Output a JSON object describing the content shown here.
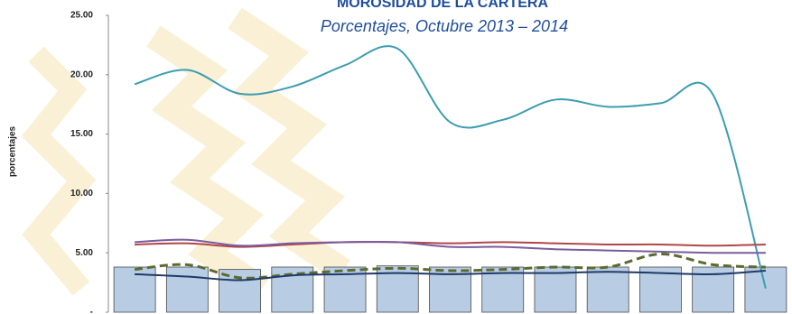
{
  "chart_data": {
    "type": "bar-line",
    "title": "MOROSIDAD DE LA CARTERA",
    "subtitle": "Porcentajes, Octubre 2013 – 2014",
    "y_label": "porcentajes",
    "categories": [
      null,
      null,
      null,
      null,
      null,
      null,
      null,
      null,
      null,
      null,
      null,
      null,
      null
    ],
    "ylim": [
      0,
      25
    ],
    "yticks": [
      {
        "value": 0,
        "label": "-"
      },
      {
        "value": 5,
        "label": "5.00"
      },
      {
        "value": 10,
        "label": "10.00"
      },
      {
        "value": 15,
        "label": "15.00"
      },
      {
        "value": 20,
        "label": "20.00"
      },
      {
        "value": 25,
        "label": "25.00"
      }
    ],
    "bar_color": "#b8cce4",
    "bar_values": [
      3.8,
      3.8,
      3.6,
      3.8,
      3.8,
      3.9,
      3.8,
      3.8,
      3.8,
      3.8,
      3.8,
      3.8,
      3.8
    ],
    "series": [
      {
        "color": "#3c9db0",
        "values": [
          19.2,
          20.4,
          18.4,
          19.0,
          20.8,
          22.2,
          16.0,
          16.2,
          17.9,
          17.3,
          17.6,
          18.3,
          2.0
        ]
      },
      {
        "color": "#b0464a",
        "values": [
          5.7,
          5.8,
          5.5,
          5.7,
          5.9,
          5.9,
          5.8,
          5.9,
          5.8,
          5.7,
          5.7,
          5.6,
          5.7
        ]
      },
      {
        "color": "#7b5c9e",
        "values": [
          5.9,
          6.1,
          5.6,
          5.8,
          5.9,
          5.9,
          5.5,
          5.5,
          5.3,
          5.2,
          5.1,
          5.0,
          5.0
        ]
      },
      {
        "color": "#5b6b2f",
        "dashed": true,
        "values": [
          3.6,
          4.0,
          2.9,
          3.2,
          3.5,
          3.7,
          3.5,
          3.6,
          3.8,
          3.8,
          4.9,
          4.0,
          3.8
        ]
      },
      {
        "color": "#1f3a68",
        "values": [
          3.2,
          3.0,
          2.7,
          3.1,
          3.2,
          3.3,
          3.2,
          3.3,
          3.3,
          3.4,
          3.3,
          3.2,
          3.5
        ]
      }
    ]
  }
}
